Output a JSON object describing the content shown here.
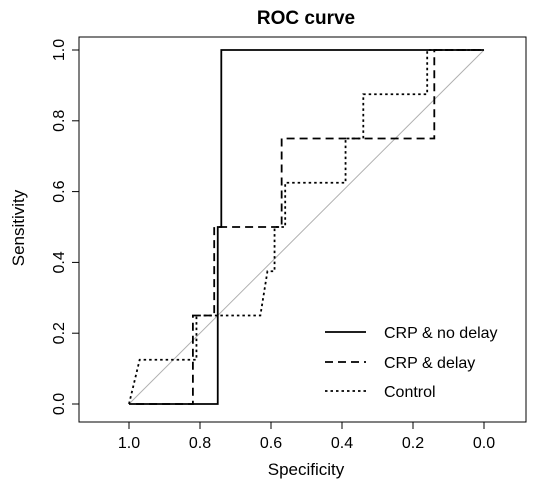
{
  "chart_data": {
    "type": "line",
    "title": "ROC curve",
    "xlabel": "Specificity",
    "ylabel": "Sensitivity",
    "xlim": [
      1.1,
      -0.1
    ],
    "ylim": [
      0,
      1
    ],
    "x_reversed": true,
    "xticks": [
      1.0,
      0.8,
      0.6,
      0.4,
      0.2,
      0.0
    ],
    "xtick_labels": [
      "1.0",
      "0.8",
      "0.6",
      "0.4",
      "0.2",
      "0.0"
    ],
    "yticks": [
      0.0,
      0.2,
      0.4,
      0.6,
      0.8,
      1.0
    ],
    "ytick_labels": [
      "0.0",
      "0.2",
      "0.4",
      "0.6",
      "0.8",
      "1.0"
    ],
    "grid": false,
    "legend_position": "bottom-right",
    "reference_line": {
      "from": [
        1.0,
        0.0
      ],
      "to": [
        0.0,
        1.0
      ],
      "color": "#b0b0b0"
    },
    "series": [
      {
        "name": "CRP & no delay",
        "style": "solid",
        "points": [
          [
            1.0,
            0.0
          ],
          [
            0.75,
            0.0
          ],
          [
            0.75,
            0.5
          ],
          [
            0.74,
            0.5
          ],
          [
            0.74,
            1.0
          ],
          [
            0.0,
            1.0
          ]
        ]
      },
      {
        "name": "CRP & delay",
        "style": "dashed",
        "points": [
          [
            0.98,
            0.0
          ],
          [
            0.82,
            0.0
          ],
          [
            0.82,
            0.25
          ],
          [
            0.76,
            0.25
          ],
          [
            0.76,
            0.5
          ],
          [
            0.57,
            0.5
          ],
          [
            0.57,
            0.75
          ],
          [
            0.14,
            0.75
          ],
          [
            0.14,
            1.0
          ],
          [
            0.0,
            1.0
          ]
        ]
      },
      {
        "name": "Control",
        "style": "dotted",
        "points": [
          [
            1.0,
            0.0
          ],
          [
            0.97,
            0.125
          ],
          [
            0.81,
            0.125
          ],
          [
            0.81,
            0.25
          ],
          [
            0.63,
            0.25
          ],
          [
            0.61,
            0.375
          ],
          [
            0.59,
            0.375
          ],
          [
            0.59,
            0.5
          ],
          [
            0.56,
            0.5
          ],
          [
            0.56,
            0.625
          ],
          [
            0.39,
            0.625
          ],
          [
            0.39,
            0.75
          ],
          [
            0.34,
            0.75
          ],
          [
            0.34,
            0.875
          ],
          [
            0.16,
            0.875
          ],
          [
            0.16,
            1.0
          ],
          [
            0.0,
            1.0
          ]
        ]
      }
    ]
  }
}
